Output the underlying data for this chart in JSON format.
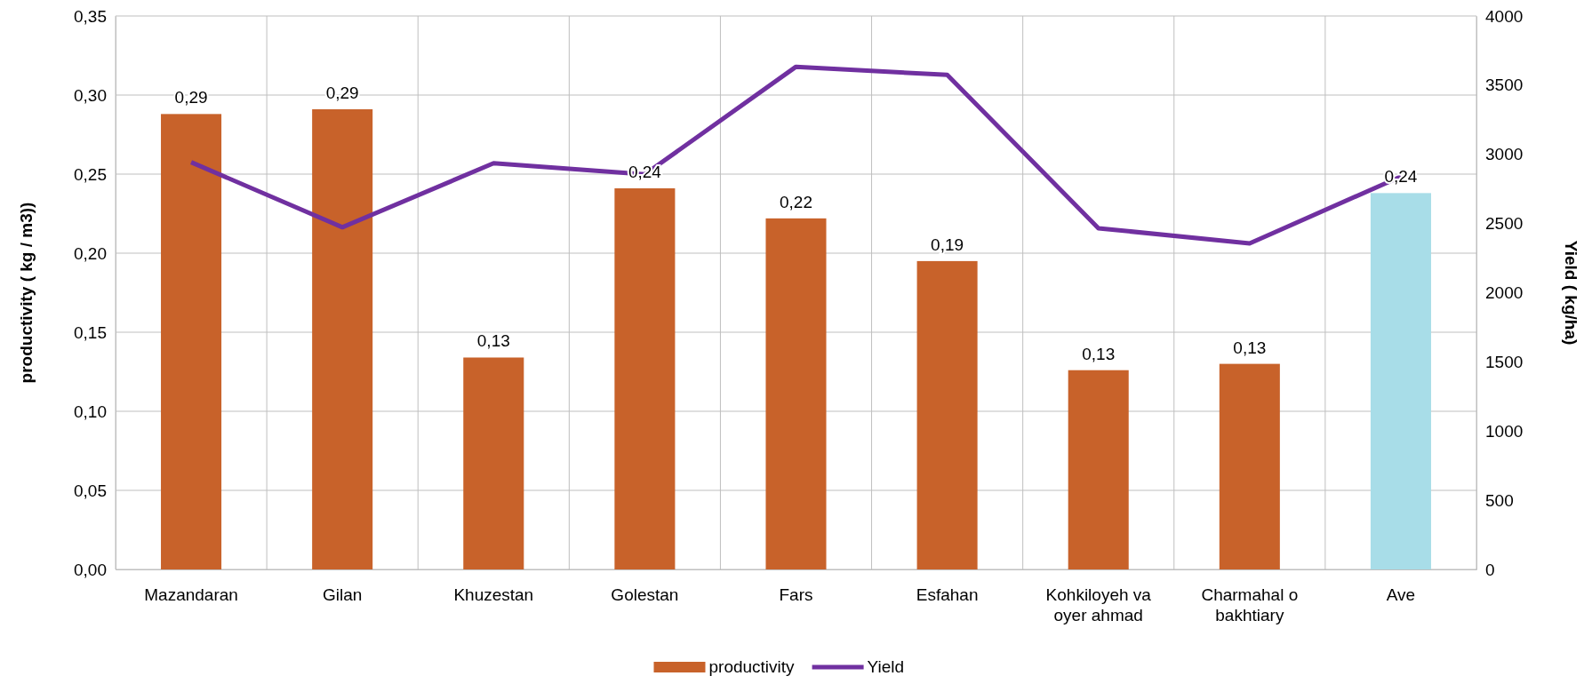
{
  "chart_data": {
    "type": "bar",
    "categories": [
      "Mazandaran",
      "Gilan",
      "Khuzestan",
      "Golestan",
      "Fars",
      "Esfahan",
      "Kohkiloyeh va oyer ahmad",
      "Charmahal o bakhtiary",
      "Ave"
    ],
    "series": [
      {
        "name": "productivity",
        "color": "#c8622a",
        "colors": [
          "#c8622a",
          "#c8622a",
          "#c8622a",
          "#c8622a",
          "#c8622a",
          "#c8622a",
          "#c8622a",
          "#c8622a",
          "#a8dde8"
        ],
        "values": [
          0.288,
          0.291,
          0.134,
          0.241,
          0.222,
          0.195,
          0.126,
          0.13,
          0.238
        ],
        "value_labels": [
          "0,29",
          "0,29",
          "0,13",
          "0,24",
          "0,22",
          "0,19",
          "0,13",
          "0,13",
          "0,24"
        ]
      },
      {
        "name": "Yield",
        "type": "line",
        "axis": "y2",
        "color": "#7030a0",
        "marker": "none",
        "values": [
          2943,
          2473,
          2936,
          2855,
          3633,
          3574,
          2466,
          2356,
          2840
        ]
      }
    ],
    "ylabel": "productivity ( kg / m3))",
    "y2label": "Yield ( kg/ha)",
    "ylim": [
      0,
      0.35
    ],
    "yticks": [
      {
        "value": 0,
        "label": "0,00"
      },
      {
        "value": 0.05,
        "label": "0,05"
      },
      {
        "value": 0.1,
        "label": "0,10"
      },
      {
        "value": 0.15,
        "label": "0,15"
      },
      {
        "value": 0.2,
        "label": "0,20"
      },
      {
        "value": 0.25,
        "label": "0,25"
      },
      {
        "value": 0.3,
        "label": "0,30"
      },
      {
        "value": 0.35,
        "label": "0,35"
      }
    ],
    "y2lim": [
      0,
      4000
    ],
    "y2ticks": [
      0,
      500,
      1000,
      1500,
      2000,
      2500,
      3000,
      3500,
      4000
    ],
    "grid": true,
    "legend": "bottom"
  }
}
